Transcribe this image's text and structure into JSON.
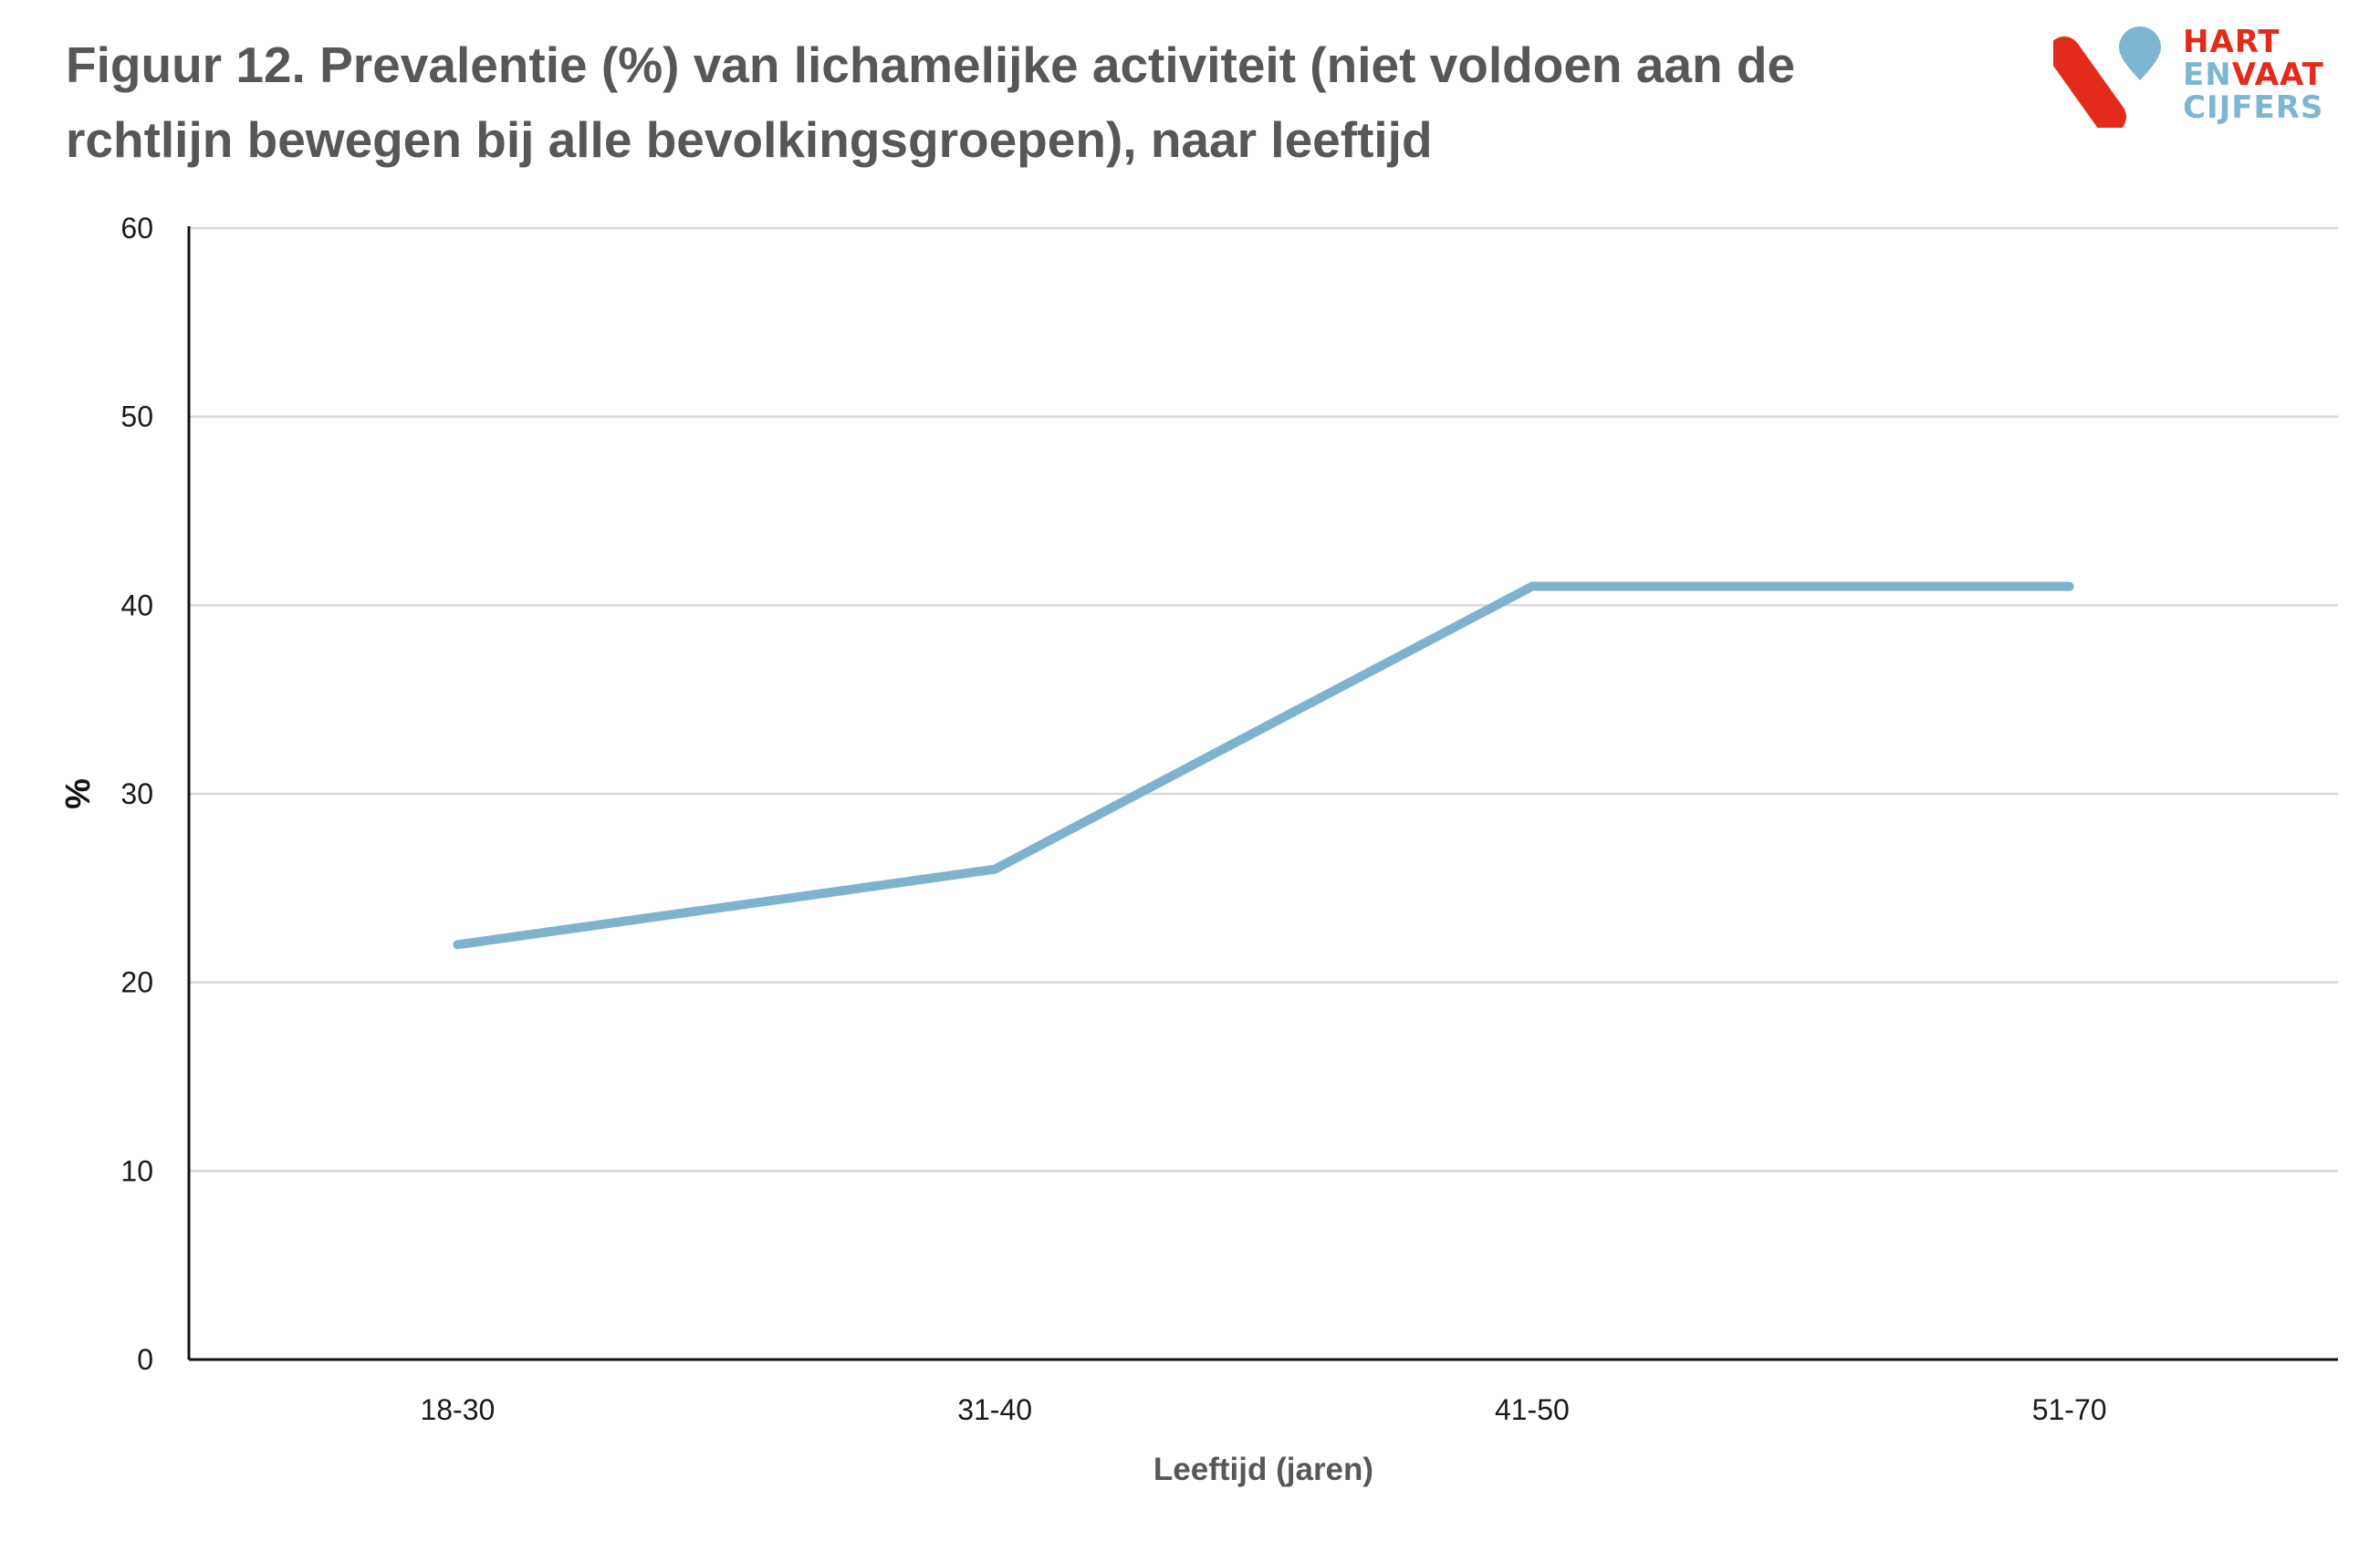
{
  "title": "Figuur 12. Prevalentie (%) van lichamelijke activiteit (niet voldoen aan de rchtlijn bewegen bij alle bevolkingsgroepen), naar leeftijd",
  "logo": {
    "line1": "HART",
    "line2a": "EN",
    "line2b": "VAAT",
    "line3": "CIJFERS",
    "red": "#e32b1b",
    "blue": "#7db6d3"
  },
  "colors": {
    "line": "#7db3cf",
    "grid": "#d9d9d9",
    "axis": "#111111"
  },
  "chart_data": {
    "type": "line",
    "categories": [
      "18-30",
      "31-40",
      "41-50",
      "51-70"
    ],
    "series": [
      {
        "values": [
          22,
          26,
          41,
          41
        ]
      }
    ],
    "xlabel": "Leeftijd (jaren)",
    "ylabel": "%",
    "ylim": [
      0,
      60
    ],
    "yticks": [
      0,
      10,
      20,
      30,
      40,
      50,
      60
    ],
    "grid": true,
    "legend": "none"
  }
}
